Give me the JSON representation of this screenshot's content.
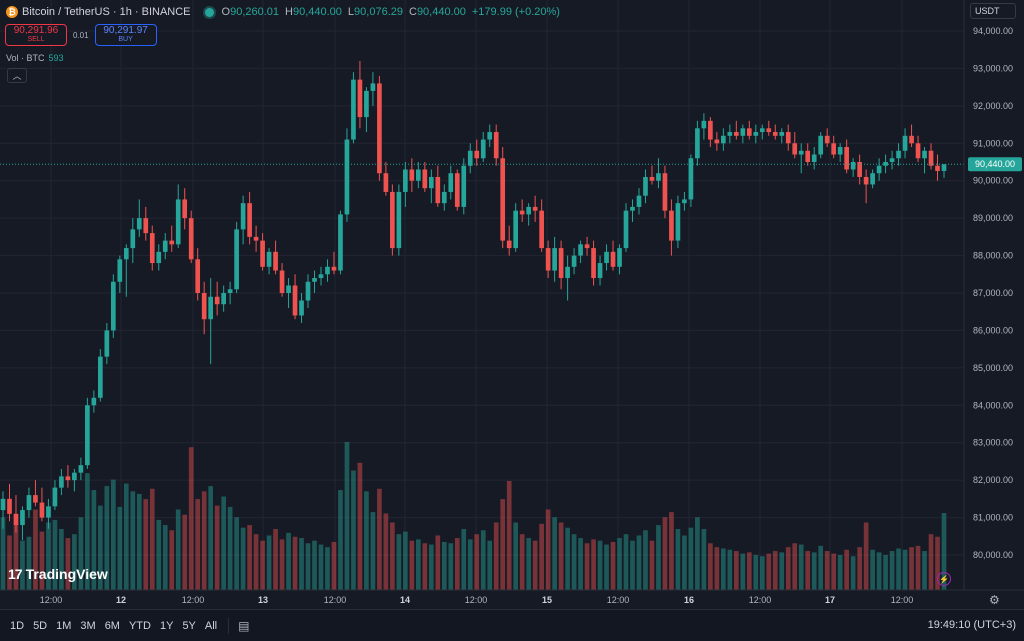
{
  "legend": {
    "symbol_icon": "bitcoin-icon",
    "title": "Bitcoin / TetherUS · 1h · BINANCE",
    "o_label": "O",
    "o_value": "90,260.01",
    "h_label": "H",
    "h_value": "90,440.00",
    "l_label": "L",
    "l_value": "90,076.29",
    "c_label": "C",
    "c_value": "90,440.00",
    "change": "+179.99 (+0.20%)"
  },
  "trade": {
    "sell_price": "90,291.96",
    "sell_label": "SELL",
    "spread": "0.01",
    "buy_price": "90,291.97",
    "buy_label": "BUY"
  },
  "volume_legend": {
    "label": "Vol · BTC",
    "value": "593"
  },
  "currency": "USDT",
  "logo": "TradingView",
  "last_price": "90,440.00",
  "colors": {
    "up": "#26a69a",
    "down": "#ef5350",
    "background": "#161a25",
    "grid": "#232632"
  },
  "chart_data": {
    "type": "candlestick",
    "interval": "1h",
    "y_ticks": [
      94000,
      93000,
      92000,
      91000,
      90000,
      89000,
      88000,
      87000,
      86000,
      85000,
      84000,
      83000,
      82000,
      81000,
      80000
    ],
    "x_tick_labels": [
      "12:00",
      "12",
      "12:00",
      "13",
      "12:00",
      "14",
      "12:00",
      "15",
      "12:00",
      "16",
      "12:00",
      "17",
      "12:00"
    ],
    "last_price": 90440,
    "candles": [
      {
        "o": 81200,
        "h": 81700,
        "l": 80700,
        "c": 81500,
        "v": 560
      },
      {
        "o": 81500,
        "h": 81900,
        "l": 80900,
        "c": 81100,
        "v": 420
      },
      {
        "o": 81100,
        "h": 81600,
        "l": 80600,
        "c": 80800,
        "v": 500
      },
      {
        "o": 80800,
        "h": 81300,
        "l": 80400,
        "c": 81200,
        "v": 380
      },
      {
        "o": 81200,
        "h": 81800,
        "l": 81000,
        "c": 81600,
        "v": 410
      },
      {
        "o": 81600,
        "h": 82000,
        "l": 81300,
        "c": 81400,
        "v": 620
      },
      {
        "o": 81400,
        "h": 81800,
        "l": 80900,
        "c": 81000,
        "v": 450
      },
      {
        "o": 81000,
        "h": 81500,
        "l": 80700,
        "c": 81300,
        "v": 520
      },
      {
        "o": 81300,
        "h": 82000,
        "l": 81200,
        "c": 81800,
        "v": 540
      },
      {
        "o": 81800,
        "h": 82300,
        "l": 81600,
        "c": 82100,
        "v": 470
      },
      {
        "o": 82100,
        "h": 82400,
        "l": 81800,
        "c": 82000,
        "v": 400
      },
      {
        "o": 82000,
        "h": 82300,
        "l": 81700,
        "c": 82200,
        "v": 430
      },
      {
        "o": 82200,
        "h": 82600,
        "l": 82000,
        "c": 82400,
        "v": 560
      },
      {
        "o": 82400,
        "h": 84200,
        "l": 82300,
        "c": 84000,
        "v": 900
      },
      {
        "o": 84000,
        "h": 84400,
        "l": 83800,
        "c": 84200,
        "v": 770
      },
      {
        "o": 84200,
        "h": 85500,
        "l": 84100,
        "c": 85300,
        "v": 650
      },
      {
        "o": 85300,
        "h": 86200,
        "l": 85100,
        "c": 86000,
        "v": 800
      },
      {
        "o": 86000,
        "h": 87500,
        "l": 85800,
        "c": 87300,
        "v": 850
      },
      {
        "o": 87300,
        "h": 88000,
        "l": 87000,
        "c": 87900,
        "v": 640
      },
      {
        "o": 87900,
        "h": 88300,
        "l": 86900,
        "c": 88200,
        "v": 820
      },
      {
        "o": 88200,
        "h": 89000,
        "l": 87800,
        "c": 88700,
        "v": 760
      },
      {
        "o": 88700,
        "h": 89500,
        "l": 88500,
        "c": 89000,
        "v": 740
      },
      {
        "o": 89000,
        "h": 89300,
        "l": 88400,
        "c": 88600,
        "v": 700
      },
      {
        "o": 88600,
        "h": 88800,
        "l": 87600,
        "c": 87800,
        "v": 780
      },
      {
        "o": 87800,
        "h": 88300,
        "l": 87600,
        "c": 88100,
        "v": 540
      },
      {
        "o": 88100,
        "h": 88600,
        "l": 87900,
        "c": 88400,
        "v": 500
      },
      {
        "o": 88400,
        "h": 88800,
        "l": 88100,
        "c": 88300,
        "v": 460
      },
      {
        "o": 88300,
        "h": 89900,
        "l": 88200,
        "c": 89500,
        "v": 620
      },
      {
        "o": 89500,
        "h": 89800,
        "l": 88700,
        "c": 89000,
        "v": 580
      },
      {
        "o": 89000,
        "h": 89200,
        "l": 87800,
        "c": 87900,
        "v": 1100
      },
      {
        "o": 87900,
        "h": 88200,
        "l": 86800,
        "c": 87000,
        "v": 700
      },
      {
        "o": 87000,
        "h": 87300,
        "l": 85900,
        "c": 86300,
        "v": 760
      },
      {
        "o": 86300,
        "h": 87400,
        "l": 85100,
        "c": 86900,
        "v": 800
      },
      {
        "o": 86900,
        "h": 87300,
        "l": 86400,
        "c": 86700,
        "v": 650
      },
      {
        "o": 86700,
        "h": 87200,
        "l": 86500,
        "c": 87000,
        "v": 720
      },
      {
        "o": 87000,
        "h": 87300,
        "l": 86700,
        "c": 87100,
        "v": 640
      },
      {
        "o": 87100,
        "h": 88900,
        "l": 87000,
        "c": 88700,
        "v": 560
      },
      {
        "o": 88700,
        "h": 89600,
        "l": 88300,
        "c": 89400,
        "v": 480
      },
      {
        "o": 89400,
        "h": 89700,
        "l": 88300,
        "c": 88500,
        "v": 500
      },
      {
        "o": 88500,
        "h": 88800,
        "l": 88100,
        "c": 88400,
        "v": 430
      },
      {
        "o": 88400,
        "h": 88600,
        "l": 87600,
        "c": 87700,
        "v": 380
      },
      {
        "o": 87700,
        "h": 88200,
        "l": 87500,
        "c": 88100,
        "v": 420
      },
      {
        "o": 88100,
        "h": 88400,
        "l": 87500,
        "c": 87600,
        "v": 470
      },
      {
        "o": 87600,
        "h": 87800,
        "l": 86900,
        "c": 87000,
        "v": 390
      },
      {
        "o": 87000,
        "h": 87400,
        "l": 86600,
        "c": 87200,
        "v": 440
      },
      {
        "o": 87200,
        "h": 87500,
        "l": 86300,
        "c": 86400,
        "v": 410
      },
      {
        "o": 86400,
        "h": 87000,
        "l": 86200,
        "c": 86800,
        "v": 400
      },
      {
        "o": 86800,
        "h": 87500,
        "l": 86600,
        "c": 87300,
        "v": 360
      },
      {
        "o": 87300,
        "h": 87600,
        "l": 87000,
        "c": 87400,
        "v": 380
      },
      {
        "o": 87400,
        "h": 87700,
        "l": 87200,
        "c": 87500,
        "v": 350
      },
      {
        "o": 87500,
        "h": 87900,
        "l": 87300,
        "c": 87700,
        "v": 330
      },
      {
        "o": 87700,
        "h": 88100,
        "l": 87500,
        "c": 87600,
        "v": 370
      },
      {
        "o": 87600,
        "h": 89200,
        "l": 87500,
        "c": 89100,
        "v": 770
      },
      {
        "o": 89100,
        "h": 91400,
        "l": 88900,
        "c": 91100,
        "v": 1140
      },
      {
        "o": 91100,
        "h": 92900,
        "l": 91000,
        "c": 92700,
        "v": 920
      },
      {
        "o": 92700,
        "h": 93200,
        "l": 91400,
        "c": 91700,
        "v": 980
      },
      {
        "o": 91700,
        "h": 92500,
        "l": 91300,
        "c": 92400,
        "v": 760
      },
      {
        "o": 92400,
        "h": 92900,
        "l": 92000,
        "c": 92600,
        "v": 600
      },
      {
        "o": 92600,
        "h": 92800,
        "l": 90000,
        "c": 90200,
        "v": 780
      },
      {
        "o": 90200,
        "h": 90500,
        "l": 89600,
        "c": 89700,
        "v": 590
      },
      {
        "o": 89700,
        "h": 89900,
        "l": 88000,
        "c": 88200,
        "v": 520
      },
      {
        "o": 88200,
        "h": 89900,
        "l": 88000,
        "c": 89700,
        "v": 430
      },
      {
        "o": 89700,
        "h": 90500,
        "l": 89300,
        "c": 90300,
        "v": 450
      },
      {
        "o": 90300,
        "h": 90600,
        "l": 89700,
        "c": 90000,
        "v": 380
      },
      {
        "o": 90000,
        "h": 90500,
        "l": 89800,
        "c": 90300,
        "v": 390
      },
      {
        "o": 90300,
        "h": 90500,
        "l": 89700,
        "c": 89800,
        "v": 360
      },
      {
        "o": 89800,
        "h": 90300,
        "l": 89400,
        "c": 90100,
        "v": 350
      },
      {
        "o": 90100,
        "h": 90400,
        "l": 89300,
        "c": 89400,
        "v": 420
      },
      {
        "o": 89400,
        "h": 89900,
        "l": 89200,
        "c": 89700,
        "v": 370
      },
      {
        "o": 89700,
        "h": 90400,
        "l": 89500,
        "c": 90200,
        "v": 360
      },
      {
        "o": 90200,
        "h": 90300,
        "l": 89200,
        "c": 89300,
        "v": 400
      },
      {
        "o": 89300,
        "h": 90600,
        "l": 89100,
        "c": 90400,
        "v": 470
      },
      {
        "o": 90400,
        "h": 91000,
        "l": 90200,
        "c": 90800,
        "v": 390
      },
      {
        "o": 90800,
        "h": 91100,
        "l": 90400,
        "c": 90600,
        "v": 430
      },
      {
        "o": 90600,
        "h": 91300,
        "l": 90500,
        "c": 91100,
        "v": 460
      },
      {
        "o": 91100,
        "h": 91500,
        "l": 90900,
        "c": 91300,
        "v": 380
      },
      {
        "o": 91300,
        "h": 91500,
        "l": 90400,
        "c": 90600,
        "v": 520
      },
      {
        "o": 90600,
        "h": 90900,
        "l": 88200,
        "c": 88400,
        "v": 700
      },
      {
        "o": 88400,
        "h": 88800,
        "l": 88000,
        "c": 88200,
        "v": 840
      },
      {
        "o": 88200,
        "h": 89400,
        "l": 88100,
        "c": 89200,
        "v": 520
      },
      {
        "o": 89200,
        "h": 89500,
        "l": 88900,
        "c": 89100,
        "v": 430
      },
      {
        "o": 89100,
        "h": 89400,
        "l": 88800,
        "c": 89300,
        "v": 400
      },
      {
        "o": 89300,
        "h": 89600,
        "l": 88900,
        "c": 89200,
        "v": 380
      },
      {
        "o": 89200,
        "h": 89500,
        "l": 88100,
        "c": 88200,
        "v": 510
      },
      {
        "o": 88200,
        "h": 88400,
        "l": 87400,
        "c": 87600,
        "v": 620
      },
      {
        "o": 87600,
        "h": 88500,
        "l": 87300,
        "c": 88200,
        "v": 560
      },
      {
        "o": 88200,
        "h": 88400,
        "l": 87100,
        "c": 87400,
        "v": 520
      },
      {
        "o": 87400,
        "h": 88000,
        "l": 86800,
        "c": 87700,
        "v": 480
      },
      {
        "o": 87700,
        "h": 88200,
        "l": 87500,
        "c": 88000,
        "v": 430
      },
      {
        "o": 88000,
        "h": 88400,
        "l": 87800,
        "c": 88300,
        "v": 400
      },
      {
        "o": 88300,
        "h": 88500,
        "l": 88000,
        "c": 88200,
        "v": 360
      },
      {
        "o": 88200,
        "h": 88400,
        "l": 87200,
        "c": 87400,
        "v": 390
      },
      {
        "o": 87400,
        "h": 88000,
        "l": 87200,
        "c": 87800,
        "v": 380
      },
      {
        "o": 87800,
        "h": 88300,
        "l": 87600,
        "c": 88100,
        "v": 350
      },
      {
        "o": 88100,
        "h": 88400,
        "l": 87600,
        "c": 87700,
        "v": 370
      },
      {
        "o": 87700,
        "h": 88300,
        "l": 87500,
        "c": 88200,
        "v": 400
      },
      {
        "o": 88200,
        "h": 89400,
        "l": 88100,
        "c": 89200,
        "v": 430
      },
      {
        "o": 89200,
        "h": 89500,
        "l": 88900,
        "c": 89300,
        "v": 380
      },
      {
        "o": 89300,
        "h": 89800,
        "l": 89100,
        "c": 89600,
        "v": 420
      },
      {
        "o": 89600,
        "h": 90300,
        "l": 89400,
        "c": 90100,
        "v": 460
      },
      {
        "o": 90100,
        "h": 90400,
        "l": 89900,
        "c": 90000,
        "v": 380
      },
      {
        "o": 90000,
        "h": 90600,
        "l": 89800,
        "c": 90200,
        "v": 500
      },
      {
        "o": 90200,
        "h": 90400,
        "l": 89000,
        "c": 89200,
        "v": 560
      },
      {
        "o": 89200,
        "h": 89500,
        "l": 88000,
        "c": 88400,
        "v": 600
      },
      {
        "o": 88400,
        "h": 89600,
        "l": 88200,
        "c": 89400,
        "v": 470
      },
      {
        "o": 89400,
        "h": 89700,
        "l": 89200,
        "c": 89500,
        "v": 420
      },
      {
        "o": 89500,
        "h": 90700,
        "l": 89300,
        "c": 90600,
        "v": 480
      },
      {
        "o": 90600,
        "h": 91600,
        "l": 90400,
        "c": 91400,
        "v": 560
      },
      {
        "o": 91400,
        "h": 91800,
        "l": 91100,
        "c": 91600,
        "v": 470
      },
      {
        "o": 91600,
        "h": 91700,
        "l": 90900,
        "c": 91100,
        "v": 360
      },
      {
        "o": 91100,
        "h": 91300,
        "l": 90800,
        "c": 91000,
        "v": 330
      },
      {
        "o": 91000,
        "h": 91400,
        "l": 90800,
        "c": 91200,
        "v": 320
      },
      {
        "o": 91200,
        "h": 91500,
        "l": 91000,
        "c": 91300,
        "v": 310
      },
      {
        "o": 91300,
        "h": 91600,
        "l": 91100,
        "c": 91200,
        "v": 300
      },
      {
        "o": 91200,
        "h": 91500,
        "l": 91000,
        "c": 91400,
        "v": 280
      },
      {
        "o": 91400,
        "h": 91600,
        "l": 91100,
        "c": 91200,
        "v": 290
      },
      {
        "o": 91200,
        "h": 91500,
        "l": 91000,
        "c": 91300,
        "v": 270
      },
      {
        "o": 91300,
        "h": 91500,
        "l": 91100,
        "c": 91400,
        "v": 260
      },
      {
        "o": 91400,
        "h": 91600,
        "l": 91200,
        "c": 91300,
        "v": 280
      },
      {
        "o": 91300,
        "h": 91500,
        "l": 91100,
        "c": 91200,
        "v": 300
      },
      {
        "o": 91200,
        "h": 91400,
        "l": 91000,
        "c": 91300,
        "v": 290
      },
      {
        "o": 91300,
        "h": 91500,
        "l": 90800,
        "c": 91000,
        "v": 330
      },
      {
        "o": 91000,
        "h": 91300,
        "l": 90600,
        "c": 90700,
        "v": 360
      },
      {
        "o": 90700,
        "h": 91000,
        "l": 90200,
        "c": 90800,
        "v": 350
      },
      {
        "o": 90800,
        "h": 91000,
        "l": 90400,
        "c": 90500,
        "v": 300
      },
      {
        "o": 90500,
        "h": 90900,
        "l": 90300,
        "c": 90700,
        "v": 290
      },
      {
        "o": 90700,
        "h": 91300,
        "l": 90600,
        "c": 91200,
        "v": 340
      },
      {
        "o": 91200,
        "h": 91400,
        "l": 90900,
        "c": 91000,
        "v": 300
      },
      {
        "o": 91000,
        "h": 91200,
        "l": 90600,
        "c": 90700,
        "v": 280
      },
      {
        "o": 90700,
        "h": 91000,
        "l": 90500,
        "c": 90900,
        "v": 270
      },
      {
        "o": 90900,
        "h": 91100,
        "l": 90200,
        "c": 90300,
        "v": 310
      },
      {
        "o": 90300,
        "h": 90600,
        "l": 90100,
        "c": 90500,
        "v": 260
      },
      {
        "o": 90500,
        "h": 90700,
        "l": 89900,
        "c": 90100,
        "v": 330
      },
      {
        "o": 90100,
        "h": 90300,
        "l": 89400,
        "c": 89900,
        "v": 520
      },
      {
        "o": 89900,
        "h": 90300,
        "l": 89800,
        "c": 90200,
        "v": 310
      },
      {
        "o": 90200,
        "h": 90600,
        "l": 90000,
        "c": 90400,
        "v": 290
      },
      {
        "o": 90400,
        "h": 90700,
        "l": 90200,
        "c": 90500,
        "v": 270
      },
      {
        "o": 90500,
        "h": 90800,
        "l": 90300,
        "c": 90600,
        "v": 300
      },
      {
        "o": 90600,
        "h": 91000,
        "l": 90400,
        "c": 90800,
        "v": 320
      },
      {
        "o": 90800,
        "h": 91400,
        "l": 90600,
        "c": 91200,
        "v": 310
      },
      {
        "o": 91200,
        "h": 91500,
        "l": 90900,
        "c": 91000,
        "v": 330
      },
      {
        "o": 91000,
        "h": 91200,
        "l": 90500,
        "c": 90600,
        "v": 340
      },
      {
        "o": 90600,
        "h": 90900,
        "l": 90200,
        "c": 90800,
        "v": 300
      },
      {
        "o": 90800,
        "h": 91000,
        "l": 90300,
        "c": 90400,
        "v": 430
      },
      {
        "o": 90400,
        "h": 90700,
        "l": 90000,
        "c": 90260,
        "v": 410
      },
      {
        "o": 90260,
        "h": 90440,
        "l": 90076,
        "c": 90440,
        "v": 593
      }
    ]
  },
  "bottom_bar": {
    "ranges": [
      "1D",
      "5D",
      "1M",
      "3M",
      "6M",
      "YTD",
      "1Y",
      "5Y",
      "All"
    ],
    "calendar_icon": "calendar-goto-icon",
    "clock": "19:49:10 (UTC+3)"
  }
}
